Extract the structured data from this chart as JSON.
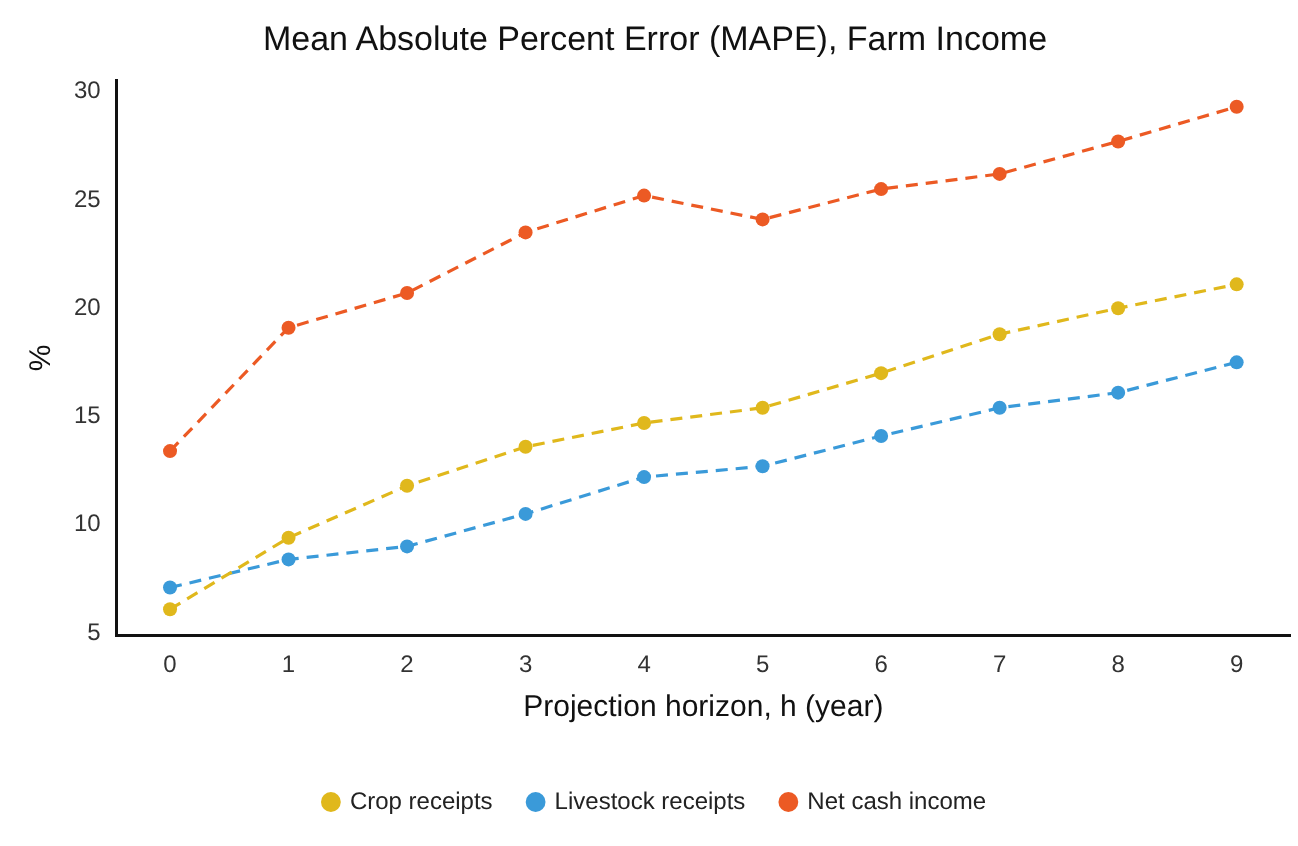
{
  "chart_data": {
    "type": "line",
    "title": "Mean Absolute Percent Error (MAPE), Farm Income",
    "xlabel": "Projection horizon, h (year)",
    "ylabel": "%",
    "x": [
      0,
      1,
      2,
      3,
      4,
      5,
      6,
      7,
      8,
      9
    ],
    "series": [
      {
        "name": "Crop receipts",
        "color": "#e0b81c",
        "values": [
          6.1,
          9.4,
          11.8,
          13.6,
          14.7,
          15.4,
          17.0,
          18.8,
          20.0,
          21.1
        ]
      },
      {
        "name": "Livestock receipts",
        "color": "#3a9ad9",
        "values": [
          7.1,
          8.4,
          9.0,
          10.5,
          12.2,
          12.7,
          14.1,
          15.4,
          16.1,
          17.5
        ]
      },
      {
        "name": "Net cash income",
        "color": "#ec5a24",
        "values": [
          13.4,
          19.1,
          20.7,
          23.5,
          25.2,
          24.1,
          25.5,
          26.2,
          27.7,
          29.3
        ]
      }
    ],
    "xlim": [
      -0.45,
      9.45
    ],
    "xticks": [
      0,
      1,
      2,
      3,
      4,
      5,
      6,
      7,
      8,
      9
    ],
    "ylim": [
      4.9,
      30.5
    ],
    "yticks": [
      5,
      10,
      15,
      20,
      25,
      30
    ],
    "grid": false,
    "legend": "bottom",
    "marker": "circle",
    "line_style": "dashed"
  }
}
